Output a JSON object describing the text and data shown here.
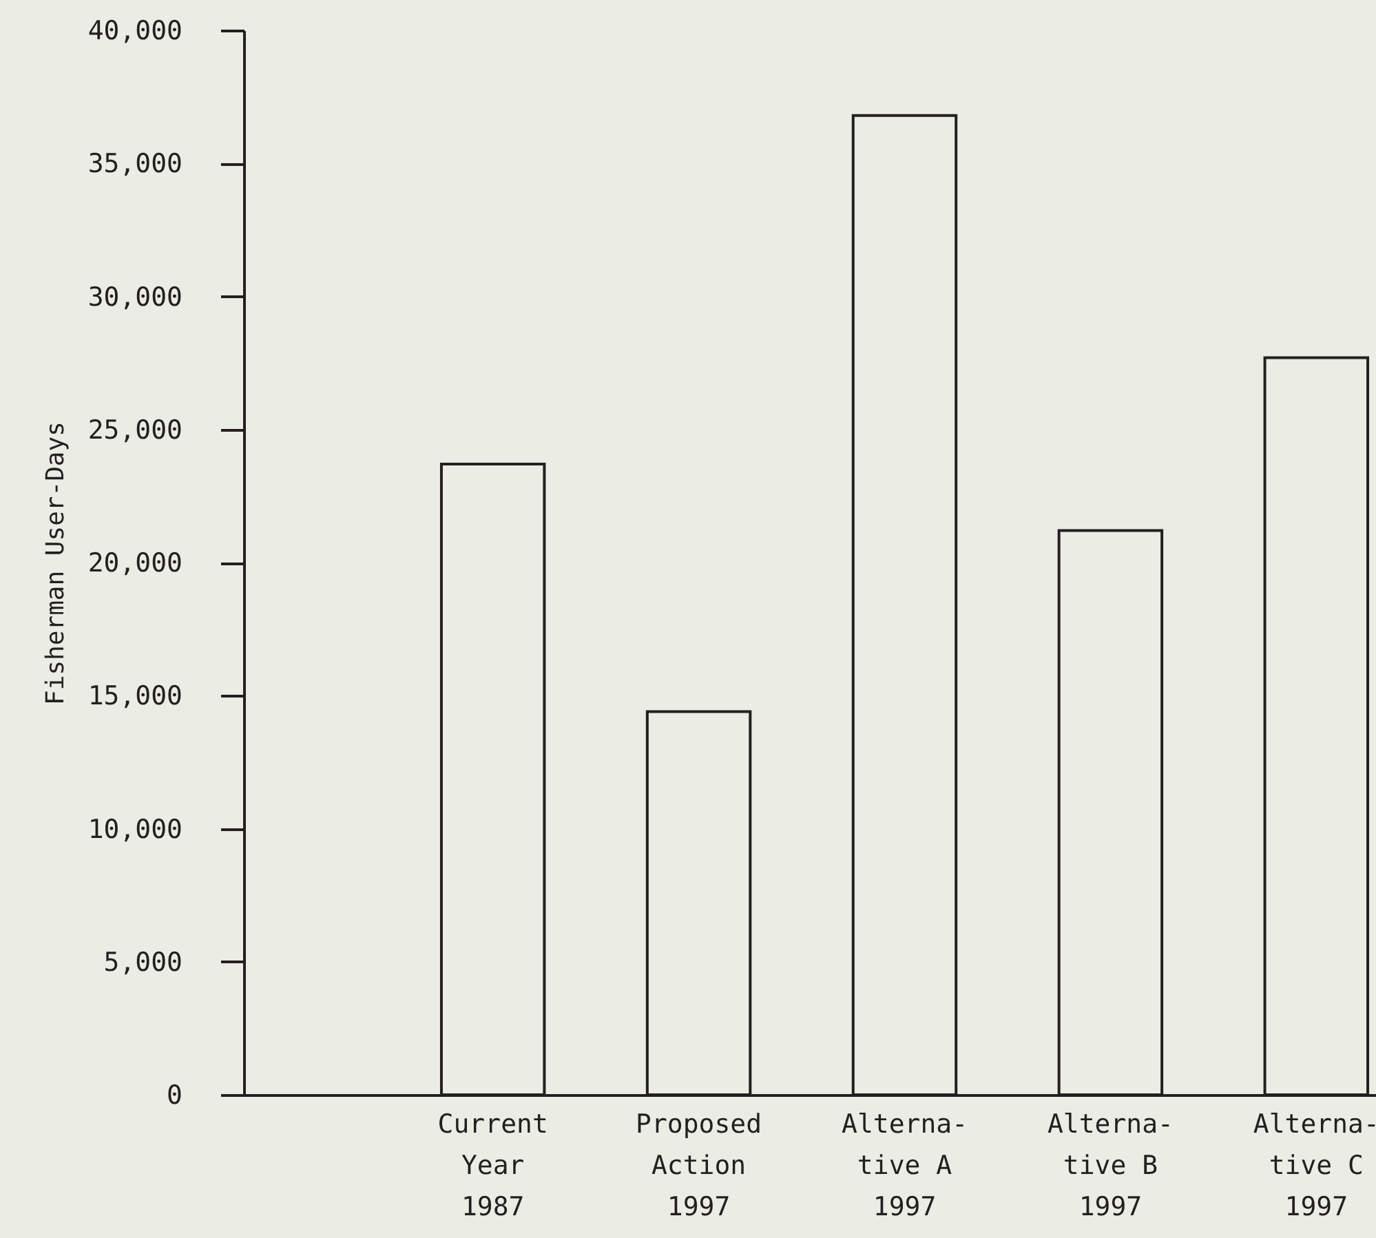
{
  "chart_data": {
    "type": "bar",
    "ylabel": "Fisherman User-Days",
    "categories": [
      "Current\nYear\n1987",
      "Proposed\nAction\n1997",
      "Alterna-\ntive A\n1997",
      "Alterna-\ntive B\n1997",
      "Alterna-\ntive C\n1997"
    ],
    "values": [
      23700,
      14400,
      36800,
      21200,
      27700
    ],
    "color": "#231f20",
    "ylim": [
      0,
      40000
    ],
    "yticks": [
      {
        "value": 0,
        "label": "0"
      },
      {
        "value": 5000,
        "label": "5,000"
      },
      {
        "value": 10000,
        "label": "10,000"
      },
      {
        "value": 15000,
        "label": "15,000"
      },
      {
        "value": 20000,
        "label": "20,000"
      },
      {
        "value": 25000,
        "label": "25,000"
      },
      {
        "value": 30000,
        "label": "30,000"
      },
      {
        "value": 35000,
        "label": "35,000"
      },
      {
        "value": 40000,
        "label": "40,000"
      }
    ],
    "grid": false
  }
}
